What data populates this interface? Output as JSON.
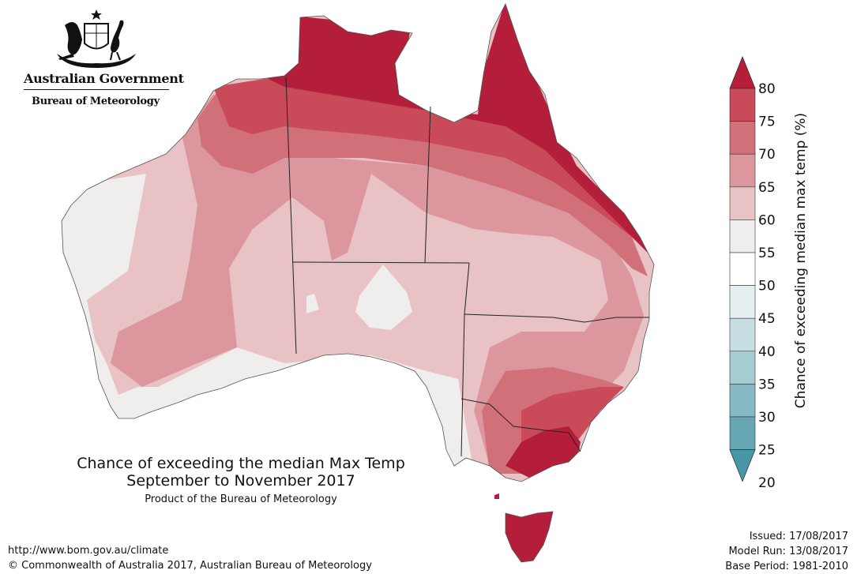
{
  "logo": {
    "line1": "Australian Government",
    "line2": "Bureau of Meteorology",
    "icon": "coat-of-arms-icon"
  },
  "title": {
    "line1": "Chance of exceeding the median Max Temp",
    "line2": "September to November 2017",
    "line3": "Product of the Bureau of Meteorology"
  },
  "footer": {
    "url": "http://www.bom.gov.au/climate",
    "copyright": "© Commonwealth of Australia 2017, Australian Bureau of Meteorology",
    "issued": "Issued: 17/08/2017",
    "model_run": "Model Run: 13/08/2017",
    "base_period": "Base Period: 1981-2010"
  },
  "legend": {
    "title": "Chance of exceeding median max temp (%)",
    "ticks": [
      "80",
      "75",
      "70",
      "65",
      "60",
      "55",
      "50",
      "45",
      "40",
      "35",
      "30",
      "25",
      "20"
    ],
    "colors": [
      "#b41e3a",
      "#c94a58",
      "#d2707a",
      "#dc979e",
      "#e8c2c5",
      "#efeeec",
      "#ffffff",
      "#e6eff1",
      "#c6dde2",
      "#a5cbd3",
      "#86b9c4",
      "#67a7b4",
      "#4897a6"
    ]
  }
}
